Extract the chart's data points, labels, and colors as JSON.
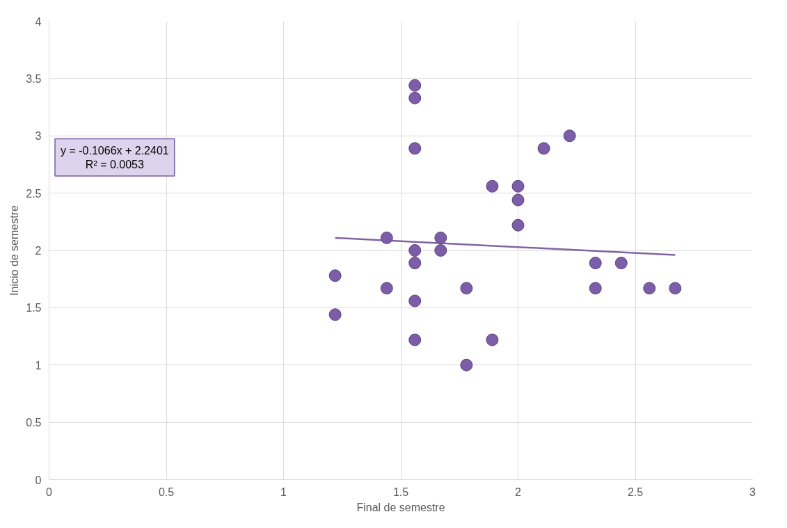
{
  "chart_data": {
    "type": "scatter",
    "xlabel": "Final de semestre",
    "ylabel": "Inicio de semestre",
    "xlim": [
      0,
      3
    ],
    "xticks": [
      0,
      0.5,
      1,
      1.5,
      2,
      2.5,
      3
    ],
    "ylim": [
      0,
      4
    ],
    "yticks": [
      0,
      0.5,
      1,
      1.5,
      2,
      2.5,
      3,
      3.5,
      4
    ],
    "grid": true,
    "series": [
      {
        "marker": "circle",
        "color": "#7b5ea7",
        "x": [
          1.22,
          1.22,
          1.44,
          1.44,
          1.56,
          1.56,
          1.56,
          1.56,
          1.56,
          1.56,
          1.56,
          1.67,
          1.67,
          1.78,
          1.78,
          1.89,
          1.89,
          2.0,
          2.0,
          2.0,
          2.11,
          2.22,
          2.33,
          2.33,
          2.44,
          2.56,
          2.67
        ],
        "values": [
          1.78,
          1.44,
          2.11,
          1.67,
          3.44,
          3.33,
          2.89,
          2.0,
          1.89,
          1.56,
          1.22,
          2.11,
          2.0,
          1.67,
          1.0,
          2.56,
          1.22,
          2.56,
          2.44,
          2.22,
          2.89,
          3.0,
          1.89,
          1.67,
          1.89,
          1.67,
          1.67
        ]
      },
      {
        "type": "line",
        "color": "#8064a2",
        "x": [
          1.22,
          2.67
        ],
        "values": [
          2.11,
          1.96
        ]
      }
    ],
    "annotations": [
      "y = -0.1066x + 2.2401\nR² = 0.0053"
    ]
  }
}
